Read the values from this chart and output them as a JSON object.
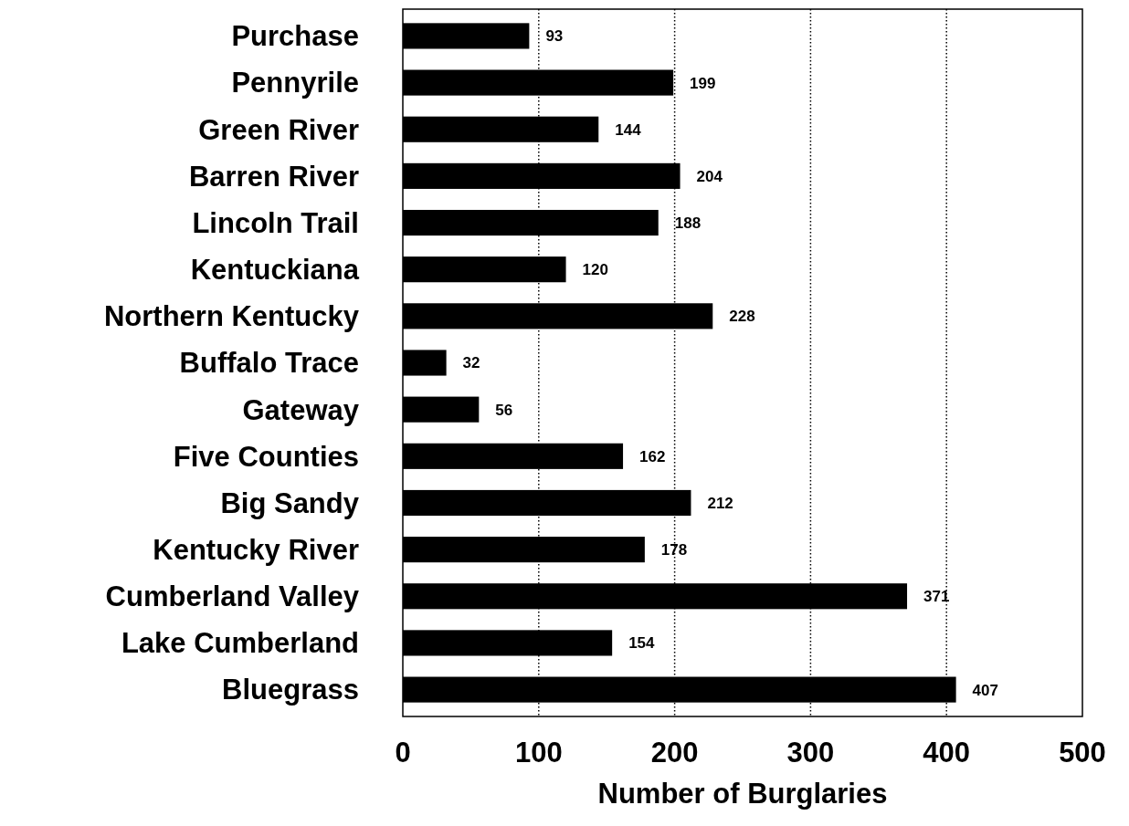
{
  "chart_data": {
    "type": "bar",
    "orientation": "horizontal",
    "xlabel": "Number of Burglaries",
    "categories": [
      "Purchase",
      "Pennyrile",
      "Green River",
      "Barren River",
      "Lincoln Trail",
      "Kentuckiana",
      "Northern Kentucky",
      "Buffalo Trace",
      "Gateway",
      "Five Counties",
      "Big Sandy",
      "Kentucky River",
      "Cumberland Valley",
      "Lake Cumberland",
      "Bluegrass"
    ],
    "values": [
      93,
      199,
      144,
      204,
      188,
      120,
      228,
      32,
      56,
      162,
      212,
      178,
      371,
      154,
      407
    ],
    "color": "#000000",
    "data_labels": true,
    "xlim": [
      0,
      500
    ],
    "xticks": [
      0,
      100,
      200,
      300,
      400,
      500
    ],
    "grid": "x"
  }
}
